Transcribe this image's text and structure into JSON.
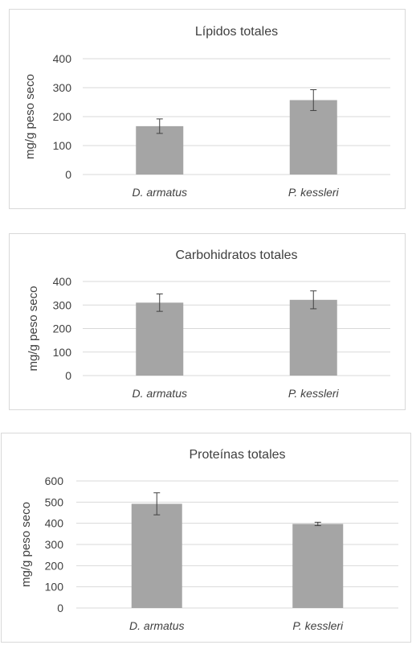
{
  "chart_data": [
    {
      "type": "bar",
      "title": "Lípidos totales",
      "ylabel": "mg/g peso seco",
      "categories": [
        "D. armatus",
        "P. kessleri"
      ],
      "values": [
        167,
        257
      ],
      "errors": [
        25,
        36
      ],
      "ylim": [
        0,
        400
      ],
      "yticks": [
        0,
        100,
        200,
        300,
        400
      ],
      "grid": true,
      "bar_color": "#a5a5a5"
    },
    {
      "type": "bar",
      "title": "Carbohidratos totales",
      "ylabel": "mg/g peso seco",
      "categories": [
        "D. armatus",
        "P. kessleri"
      ],
      "values": [
        310,
        322
      ],
      "errors": [
        37,
        38
      ],
      "ylim": [
        0,
        400
      ],
      "yticks": [
        0,
        100,
        200,
        300,
        400
      ],
      "grid": true,
      "bar_color": "#a5a5a5"
    },
    {
      "type": "bar",
      "title": "Proteínas totales",
      "ylabel": "mg/g peso seco",
      "categories": [
        "D. armatus",
        "P. kessleri"
      ],
      "values": [
        492,
        397
      ],
      "errors": [
        52,
        8
      ],
      "ylim": [
        0,
        600
      ],
      "yticks": [
        0,
        100,
        200,
        300,
        400,
        500,
        600
      ],
      "grid": true,
      "bar_color": "#a5a5a5"
    }
  ]
}
